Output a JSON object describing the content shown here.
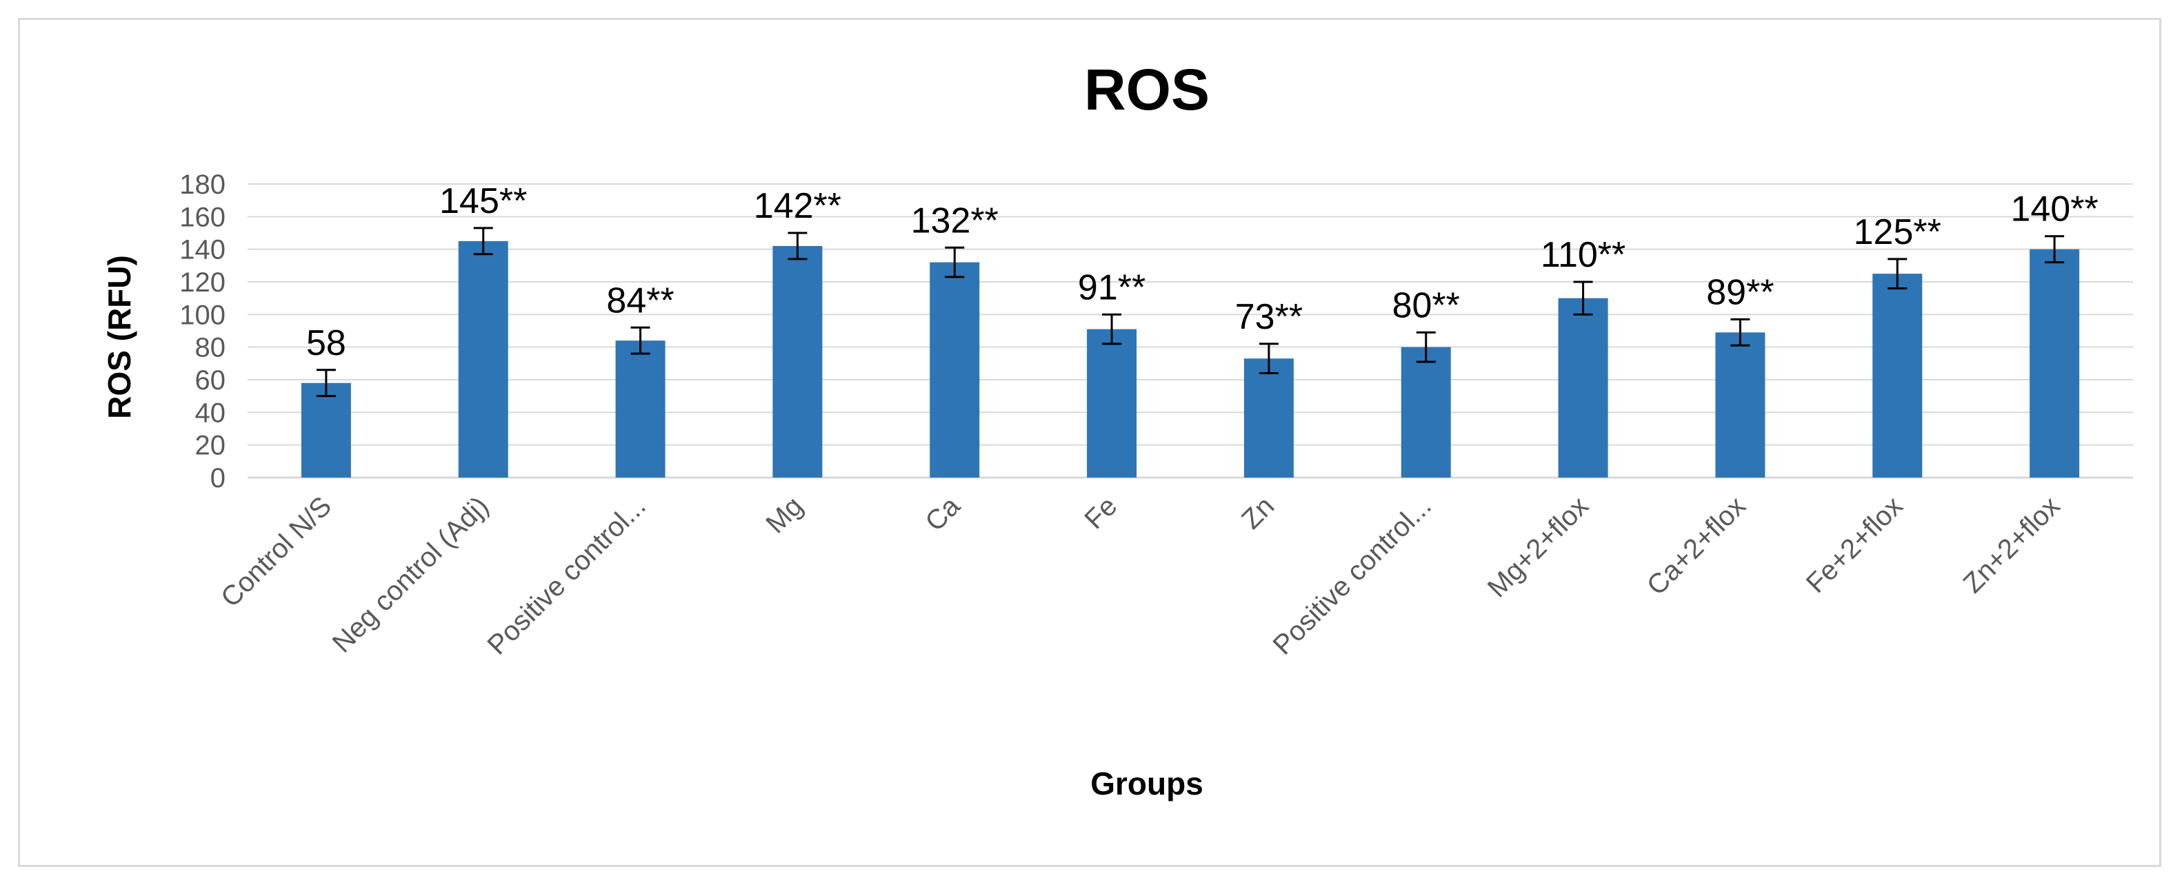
{
  "chart_data": {
    "type": "bar",
    "title": "ROS",
    "xlabel": "Groups",
    "ylabel": "ROS (RFU)",
    "ylim": [
      0,
      180
    ],
    "ytick_step": 20,
    "grid": true,
    "legend": "none",
    "bar_color": "#2e75b6",
    "categories": [
      "Control N/S",
      "Neg control (Adj)",
      "Positive control...",
      "Mg",
      "Ca",
      "Fe",
      "Zn",
      "Positive control...",
      "Mg+2+flox",
      "Ca+2+flox",
      "Fe+2+flox",
      "Zn+2+flox"
    ],
    "values": [
      58,
      145,
      84,
      142,
      132,
      91,
      73,
      80,
      110,
      89,
      125,
      140
    ],
    "errors": [
      8,
      8,
      8,
      8,
      9,
      9,
      9,
      9,
      10,
      8,
      9,
      8
    ],
    "data_labels": [
      "58",
      "145**",
      "84**",
      "142**",
      "132**",
      "91**",
      "73**",
      "80**",
      "110**",
      "89**",
      "125**",
      "140**"
    ]
  }
}
